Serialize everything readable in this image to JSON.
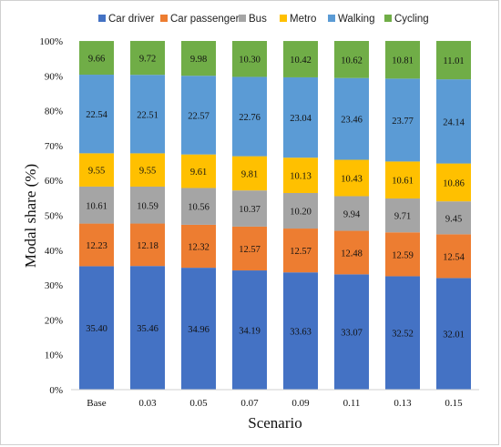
{
  "chart_data": {
    "type": "bar",
    "stacked": true,
    "categories": [
      "Base",
      "0.03",
      "0.05",
      "0.07",
      "0.09",
      "0.11",
      "0.13",
      "0.15"
    ],
    "series": [
      {
        "name": "Car driver",
        "color": "#4472C4",
        "values": [
          35.4,
          35.46,
          34.96,
          34.19,
          33.63,
          33.07,
          32.52,
          32.01
        ]
      },
      {
        "name": "Car passenger",
        "color": "#ED7D31",
        "values": [
          12.23,
          12.18,
          12.32,
          12.57,
          12.57,
          12.48,
          12.59,
          12.54
        ]
      },
      {
        "name": "Bus",
        "color": "#A5A5A5",
        "values": [
          10.61,
          10.59,
          10.56,
          10.37,
          10.2,
          9.94,
          9.71,
          9.45
        ]
      },
      {
        "name": "Metro",
        "color": "#FFC000",
        "values": [
          9.55,
          9.55,
          9.61,
          9.81,
          10.13,
          10.43,
          10.61,
          10.86
        ]
      },
      {
        "name": "Walking",
        "color": "#5B9BD5",
        "values": [
          22.54,
          22.51,
          22.57,
          22.76,
          23.04,
          23.46,
          23.77,
          24.14
        ]
      },
      {
        "name": "Cycling",
        "color": "#70AD47",
        "values": [
          9.66,
          9.72,
          9.98,
          10.3,
          10.42,
          10.62,
          10.81,
          11.01
        ]
      }
    ],
    "xlabel": "Scenario",
    "ylabel": "Modal share (%)",
    "ylim": [
      0,
      100
    ],
    "yticks": [
      "0%",
      "10%",
      "20%",
      "30%",
      "40%",
      "50%",
      "60%",
      "70%",
      "80%",
      "90%",
      "100%"
    ],
    "legend_position": "top",
    "grid": false
  }
}
